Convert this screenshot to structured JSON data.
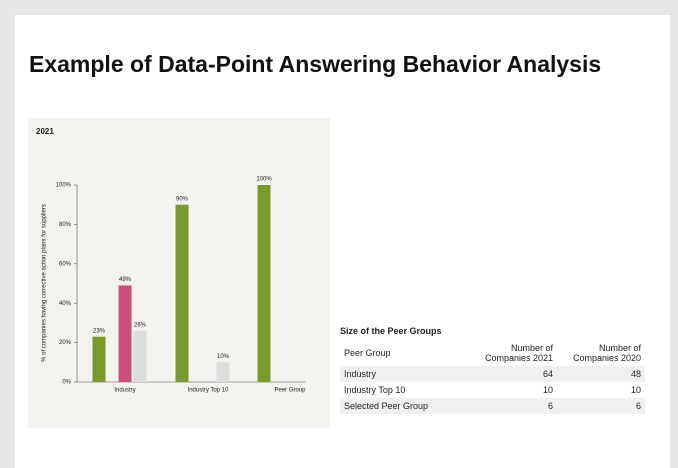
{
  "title": "Example of Data-Point Answering Behavior Analysis",
  "chart_data": {
    "type": "bar",
    "title": "2021",
    "ylabel": "% of companies having corrective action plans for suppliers",
    "categories": [
      "Industry",
      "Industry Top 10",
      "Peer Group"
    ],
    "series": [
      {
        "color": "#7b9a2e",
        "values": [
          23,
          90,
          100
        ],
        "value_labels": [
          "23%",
          "90%",
          "100%"
        ]
      },
      {
        "color": "#c9507a",
        "values": [
          49,
          null,
          null
        ],
        "value_labels": [
          "49%",
          null,
          null
        ]
      },
      {
        "color": "#dcdcdc",
        "values": [
          26,
          10,
          null
        ],
        "value_labels": [
          "26%",
          "10%",
          null
        ]
      }
    ],
    "ylim": [
      0,
      100
    ],
    "yticks": [
      {
        "value": 0,
        "label": "0%"
      },
      {
        "value": 20,
        "label": "20%"
      },
      {
        "value": 40,
        "label": "40%"
      },
      {
        "value": 60,
        "label": "60%"
      },
      {
        "value": 80,
        "label": "80%"
      },
      {
        "value": 100,
        "label": "100%"
      }
    ]
  },
  "table": {
    "title": "Size of the Peer Groups",
    "headers": [
      "Peer Group",
      "Number of Companies 2021",
      "Number of Companies 2020"
    ],
    "rows": [
      [
        "Industry",
        "64",
        "48"
      ],
      [
        "Industry Top 10",
        "10",
        "10"
      ],
      [
        "Selected Peer Group",
        "6",
        "6"
      ]
    ]
  }
}
